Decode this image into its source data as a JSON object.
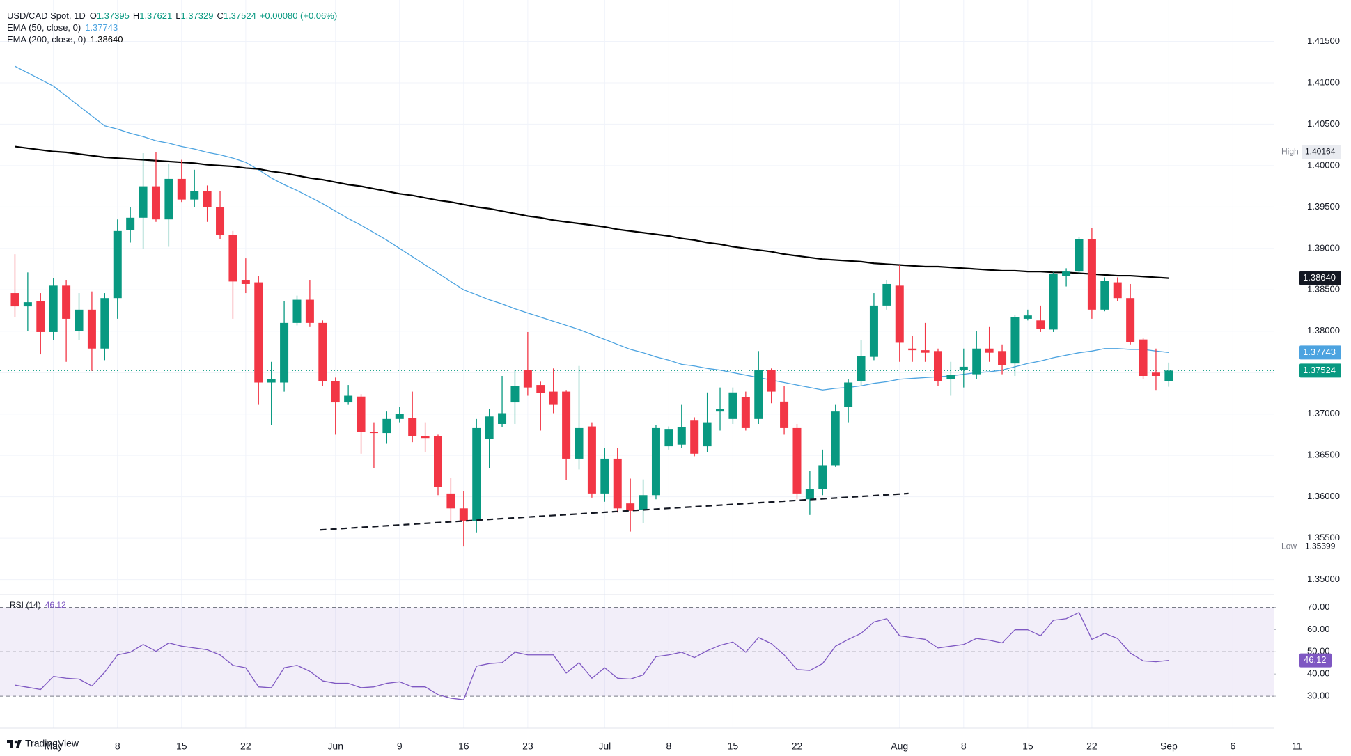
{
  "header": {
    "symbol": "USD/CAD Spot, 1D",
    "ohlc_letters": [
      "O",
      "H",
      "L",
      "C"
    ],
    "change": "+0.00080 (+0.06%)"
  },
  "watermark": "TradingView",
  "chart_data": [
    {
      "type": "candlestick",
      "categories": [
        null,
        null,
        null,
        "May",
        null,
        null,
        null,
        null,
        "8",
        null,
        null,
        null,
        null,
        "15",
        null,
        null,
        null,
        null,
        "22",
        null,
        null,
        null,
        null,
        null,
        null,
        "Jun",
        null,
        null,
        null,
        null,
        "9",
        null,
        null,
        null,
        null,
        "16",
        null,
        null,
        null,
        null,
        "23",
        null,
        null,
        null,
        null,
        null,
        "Jul",
        null,
        null,
        null,
        null,
        "8",
        null,
        null,
        null,
        null,
        "15",
        null,
        null,
        null,
        null,
        "22",
        null,
        null,
        null,
        null,
        null,
        null,
        null,
        "Aug",
        null,
        null,
        null,
        null,
        "8",
        null,
        null,
        null,
        null,
        "15",
        null,
        null,
        null,
        null,
        "22",
        null,
        null,
        null,
        null,
        null,
        "Sep",
        null,
        null,
        null,
        null,
        "6",
        null,
        null,
        null,
        null,
        "11"
      ],
      "open": [
        1.3846,
        1.383,
        1.3836,
        1.3799,
        1.3855,
        1.38,
        1.3826,
        1.3779,
        1.384,
        1.3922,
        1.3937,
        1.3975,
        1.3935,
        1.3984,
        1.3959,
        1.3969,
        1.395,
        1.3916,
        1.3862,
        1.3859,
        1.3738,
        1.3738,
        1.381,
        1.3838,
        1.381,
        1.374,
        1.3714,
        1.3721,
        1.3678,
        1.3677,
        1.3694,
        1.3695,
        1.3673,
        1.3673,
        1.3604,
        1.3586,
        1.3571,
        1.367,
        1.3688,
        1.3714,
        1.3753,
        1.3735,
        1.3727,
        1.3727,
        1.3646,
        1.3685,
        1.3604,
        1.3646,
        1.3592,
        1.3584,
        1.3602,
        1.3661,
        1.3663,
        1.3692,
        1.3661,
        1.3703,
        1.3694,
        1.372,
        1.3694,
        1.3753,
        1.3715,
        1.3683,
        1.3597,
        1.3609,
        1.3638,
        1.3709,
        1.374,
        1.3769,
        1.3831,
        1.3855,
        1.3779,
        1.3777,
        1.3776,
        1.3742,
        1.3753,
        1.3748,
        1.3779,
        1.3776,
        1.3761,
        1.3815,
        1.3813,
        1.3802,
        1.3867,
        1.3872,
        1.3911,
        1.3826,
        1.3859,
        1.384,
        1.379,
        1.375,
        1.37395,
        null,
        null,
        null,
        null,
        null,
        null,
        null,
        null,
        null,
        null
      ],
      "high": [
        1.3893,
        1.3871,
        1.3846,
        1.3864,
        1.3862,
        1.3846,
        1.3848,
        1.3846,
        1.3935,
        1.395,
        1.4015,
        1.40164,
        1.4002,
        1.4007,
        1.3995,
        1.3976,
        1.3969,
        1.3921,
        1.3888,
        1.3867,
        1.3763,
        1.3836,
        1.3843,
        1.3862,
        1.3813,
        1.3744,
        1.3735,
        1.3724,
        1.369,
        1.3703,
        1.3709,
        1.3727,
        1.369,
        1.3675,
        1.3623,
        1.3607,
        1.3694,
        1.3706,
        1.3746,
        1.3753,
        1.3799,
        1.3739,
        1.3755,
        1.3729,
        1.3758,
        1.369,
        1.3659,
        1.3659,
        1.3622,
        1.3621,
        1.3687,
        1.3685,
        1.3711,
        1.3696,
        1.3726,
        1.3732,
        1.3732,
        1.3727,
        1.3776,
        1.3755,
        1.3734,
        1.3688,
        1.3631,
        1.3657,
        1.3711,
        1.3742,
        1.3789,
        1.3846,
        1.3862,
        1.388,
        1.3794,
        1.381,
        1.3779,
        1.3763,
        1.3779,
        1.38,
        1.3805,
        1.3784,
        1.382,
        1.3826,
        1.3831,
        1.3871,
        1.3876,
        1.3914,
        1.3925,
        1.3865,
        1.3865,
        1.3857,
        1.3792,
        1.3779,
        1.37621,
        null,
        null,
        null,
        null,
        null,
        null,
        null,
        null,
        null,
        null
      ],
      "low": [
        1.3817,
        1.38,
        1.3772,
        1.3789,
        1.3763,
        1.3789,
        1.3752,
        1.3765,
        1.3815,
        1.3907,
        1.39,
        1.3932,
        1.3902,
        1.3956,
        1.395,
        1.3932,
        1.3911,
        1.3815,
        1.3846,
        1.3711,
        1.3687,
        1.3727,
        1.3807,
        1.3805,
        1.3734,
        1.3675,
        1.3711,
        1.3652,
        1.3635,
        1.3664,
        1.369,
        1.3666,
        1.3654,
        1.3602,
        1.3571,
        1.35399,
        1.3557,
        1.3635,
        1.3684,
        1.3688,
        1.3722,
        1.368,
        1.3701,
        1.362,
        1.3633,
        1.3599,
        1.3594,
        1.3581,
        1.3558,
        1.3568,
        1.3597,
        1.3657,
        1.3659,
        1.3649,
        1.3654,
        1.368,
        1.3688,
        1.368,
        1.3688,
        1.3713,
        1.3675,
        1.3597,
        1.3578,
        1.3602,
        1.3636,
        1.369,
        1.3735,
        1.3765,
        1.3826,
        1.3763,
        1.3763,
        1.3763,
        1.3734,
        1.3722,
        1.3732,
        1.3742,
        1.3763,
        1.3748,
        1.3746,
        1.3813,
        1.3799,
        1.3799,
        1.3854,
        1.3869,
        1.3815,
        1.3824,
        1.3836,
        1.3784,
        1.3742,
        1.3729,
        1.37329,
        null,
        null,
        null,
        null,
        null,
        null,
        null,
        null,
        null,
        null
      ],
      "close": [
        1.383,
        1.3835,
        1.3799,
        1.3855,
        1.3815,
        1.3826,
        1.3779,
        1.384,
        1.3921,
        1.3937,
        1.3975,
        1.3935,
        1.3984,
        1.3959,
        1.3969,
        1.395,
        1.3916,
        1.386,
        1.3857,
        1.3738,
        1.3742,
        1.381,
        1.3838,
        1.381,
        1.374,
        1.3714,
        1.3722,
        1.3678,
        1.3677,
        1.3694,
        1.37,
        1.3673,
        1.3671,
        1.3612,
        1.3586,
        1.3571,
        1.3683,
        1.3697,
        1.3701,
        1.3734,
        1.3732,
        1.3725,
        1.3711,
        1.3646,
        1.3683,
        1.3604,
        1.3646,
        1.3586,
        1.3583,
        1.3602,
        1.3683,
        1.3682,
        1.3684,
        1.3652,
        1.369,
        1.3706,
        1.3726,
        1.3683,
        1.3753,
        1.3727,
        1.3683,
        1.3604,
        1.3609,
        1.3638,
        1.3703,
        1.3738,
        1.377,
        1.3831,
        1.3857,
        1.3786,
        1.3777,
        1.3774,
        1.374,
        1.3747,
        1.3757,
        1.3779,
        1.3774,
        1.3759,
        1.3817,
        1.3819,
        1.3803,
        1.3869,
        1.3872,
        1.3911,
        1.3826,
        1.3861,
        1.384,
        1.3787,
        1.3746,
        1.3746,
        1.37524,
        null,
        null,
        null,
        null,
        null,
        null,
        null,
        null,
        null,
        null
      ],
      "up_color": "#089981",
      "down_color": "#f23645",
      "overlays": [
        {
          "name": "EMA (50, close, 0)",
          "color": "#4ca3e0",
          "values": [
            1.412,
            1.4112,
            1.4104,
            1.4096,
            1.4084,
            1.4072,
            1.406,
            1.4048,
            1.4044,
            1.4039,
            1.4035,
            1.403,
            1.4027,
            1.4023,
            1.402,
            1.4016,
            1.4013,
            1.4009,
            1.4004,
            1.3995,
            1.3985,
            1.3977,
            1.397,
            1.3962,
            1.3954,
            1.3945,
            1.3936,
            1.3928,
            1.3919,
            1.391,
            1.39,
            1.389,
            1.388,
            1.387,
            1.386,
            1.385,
            1.3844,
            1.3838,
            1.3833,
            1.3827,
            1.3822,
            1.3817,
            1.3812,
            1.3807,
            1.3802,
            1.3796,
            1.379,
            1.3784,
            1.3778,
            1.3774,
            1.3769,
            1.3765,
            1.376,
            1.3758,
            1.3755,
            1.3753,
            1.375,
            1.3747,
            1.3744,
            1.3741,
            1.3738,
            1.3735,
            1.3732,
            1.3729,
            1.3731,
            1.3732,
            1.3734,
            1.3737,
            1.3739,
            1.3742,
            1.3743,
            1.3744,
            1.3745,
            1.3746,
            1.3748,
            1.375,
            1.3751,
            1.3753,
            1.3757,
            1.3761,
            1.3764,
            1.3768,
            1.3771,
            1.3774,
            1.3776,
            1.3779,
            1.3779,
            1.3778,
            1.3778,
            1.3776,
            1.37743,
            null,
            null,
            null,
            null,
            null,
            null,
            null,
            null,
            null,
            null
          ]
        },
        {
          "name": "EMA (200, close, 0)",
          "color": "#000000",
          "last_label": "1.38640",
          "values": [
            1.4023,
            1.4021,
            1.4019,
            1.4017,
            1.4016,
            1.4014,
            1.4012,
            1.401,
            1.4009,
            1.4008,
            1.4007,
            1.4006,
            1.4005,
            1.4004,
            1.4003,
            1.4001,
            1.4,
            1.3999,
            1.3997,
            1.3996,
            1.3993,
            1.3991,
            1.3988,
            1.3985,
            1.3983,
            1.398,
            1.3977,
            1.3975,
            1.3972,
            1.3969,
            1.3966,
            1.3964,
            1.3961,
            1.3958,
            1.3956,
            1.3953,
            1.395,
            1.3948,
            1.3945,
            1.3942,
            1.3939,
            1.3937,
            1.3934,
            1.3932,
            1.393,
            1.3928,
            1.3926,
            1.3923,
            1.3921,
            1.3919,
            1.3917,
            1.3915,
            1.3912,
            1.391,
            1.3907,
            1.3905,
            1.3902,
            1.39,
            1.3898,
            1.3896,
            1.3893,
            1.3891,
            1.3889,
            1.3887,
            1.3886,
            1.3885,
            1.3884,
            1.3882,
            1.3881,
            1.388,
            1.3879,
            1.3878,
            1.3878,
            1.3877,
            1.3876,
            1.3875,
            1.3874,
            1.3873,
            1.3873,
            1.3872,
            1.3872,
            1.3871,
            1.3871,
            1.387,
            1.3869,
            1.3868,
            1.3867,
            1.3867,
            1.3866,
            1.3865,
            1.3864,
            null,
            null,
            null,
            null,
            null,
            null,
            null,
            null,
            null,
            null
          ]
        }
      ],
      "high_label": {
        "text": "High",
        "value": 1.40164
      },
      "low_label": {
        "text": "Low",
        "value": 1.35399
      },
      "trendline": {
        "x": [
          23.8,
          69.7
        ],
        "y": [
          1.356,
          1.3604
        ]
      },
      "ylim": [
        1.3482,
        1.42
      ],
      "yticks": [
        {
          "value": 1.35,
          "label": "1.35000"
        },
        {
          "value": 1.355,
          "label": "1.35500"
        },
        {
          "value": 1.36,
          "label": "1.36000"
        },
        {
          "value": 1.365,
          "label": "1.36500"
        },
        {
          "value": 1.37,
          "label": "1.37000"
        },
        {
          "value": 1.375,
          "label": "1.37500"
        },
        {
          "value": 1.38,
          "label": "1.38000"
        },
        {
          "value": 1.385,
          "label": "1.38500"
        },
        {
          "value": 1.39,
          "label": "1.39000"
        },
        {
          "value": 1.395,
          "label": "1.39500"
        },
        {
          "value": 1.4,
          "label": "1.40000"
        },
        {
          "value": 1.405,
          "label": "1.40500"
        },
        {
          "value": 1.41,
          "label": "1.41000"
        },
        {
          "value": 1.415,
          "label": "1.41500"
        }
      ],
      "grid": true
    },
    {
      "type": "line",
      "name": "RSI (14)",
      "color": "#7e57c2",
      "values": [
        35,
        34,
        33,
        38.9,
        38.1,
        37.7,
        34.6,
        40.8,
        48.6,
        49.8,
        53.3,
        50.2,
        54,
        52.5,
        51.7,
        50.9,
        48.6,
        43.9,
        42.8,
        34.2,
        33.8,
        42.8,
        43.9,
        41.2,
        36.9,
        35.8,
        35.8,
        33.8,
        34.2,
        35.8,
        36.5,
        34.2,
        34.2,
        30.7,
        29.1,
        28.4,
        43.5,
        44.7,
        45.1,
        49.8,
        48.6,
        48.6,
        48.6,
        40.4,
        45.1,
        38.1,
        42.8,
        38.1,
        37.7,
        39.6,
        47.8,
        48.6,
        49.8,
        47.4,
        50.5,
        52.9,
        54.4,
        49.8,
        56.4,
        53.7,
        48.6,
        42,
        41.6,
        44.7,
        52.5,
        55.6,
        58.3,
        63.4,
        64.9,
        57.2,
        56.4,
        55.6,
        51.7,
        52.5,
        53.3,
        56,
        55.2,
        54,
        59.9,
        59.9,
        57.2,
        64.2,
        64.9,
        67.7,
        55.6,
        58.3,
        56,
        49.4,
        45.9,
        45.5,
        46.12,
        null,
        null,
        null,
        null,
        null,
        null,
        null,
        null,
        null,
        null
      ],
      "levels": [
        70,
        50,
        30
      ],
      "ylim": [
        15.6,
        75.8
      ],
      "yticks": [
        {
          "value": 30,
          "label": "30.00"
        },
        {
          "value": 40,
          "label": "40.00"
        },
        {
          "value": 50,
          "label": "50.00"
        },
        {
          "value": 60,
          "label": "60.00"
        },
        {
          "value": 70,
          "label": "70.00"
        }
      ]
    }
  ]
}
